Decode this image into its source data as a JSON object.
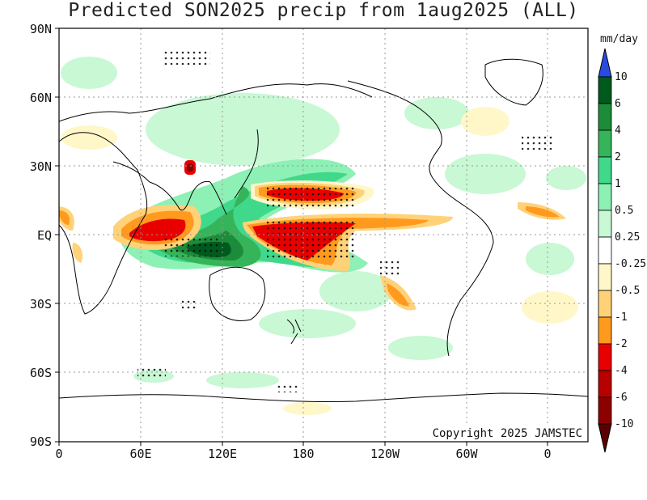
{
  "title": "Predicted SON2025 precip from 1aug2025 (ALL)",
  "map": {
    "lat_labels": [
      "90N",
      "60N",
      "30N",
      "EQ",
      "30S",
      "60S",
      "90S"
    ],
    "lon_labels": [
      "0",
      "60E",
      "120E",
      "180",
      "120W",
      "60W",
      "0"
    ],
    "copyright": "Copyright 2025 JAMSTEC"
  },
  "colorbar": {
    "unit": "mm/day",
    "labels": [
      "10",
      "6",
      "4",
      "2",
      "1",
      "0.5",
      "0.25",
      "-0.25",
      "-0.5",
      "-1",
      "-2",
      "-4",
      "-6",
      "-10"
    ],
    "colors": {
      "over": "#2a4be0",
      "c6_10": "#005a1e",
      "c4_6": "#1d8c3a",
      "c2_4": "#35b45a",
      "c1_2": "#40d98c",
      "c05_1": "#8df0b4",
      "c025_05": "#c8f8d4",
      "neutral": "#ffffff",
      "n025_05": "#fff7c8",
      "n05_1": "#ffd278",
      "n1_2": "#ff9a1e",
      "n2_4": "#e80000",
      "n4_6": "#b80000",
      "n6_10": "#8c0000",
      "under": "#5a0000"
    }
  }
}
